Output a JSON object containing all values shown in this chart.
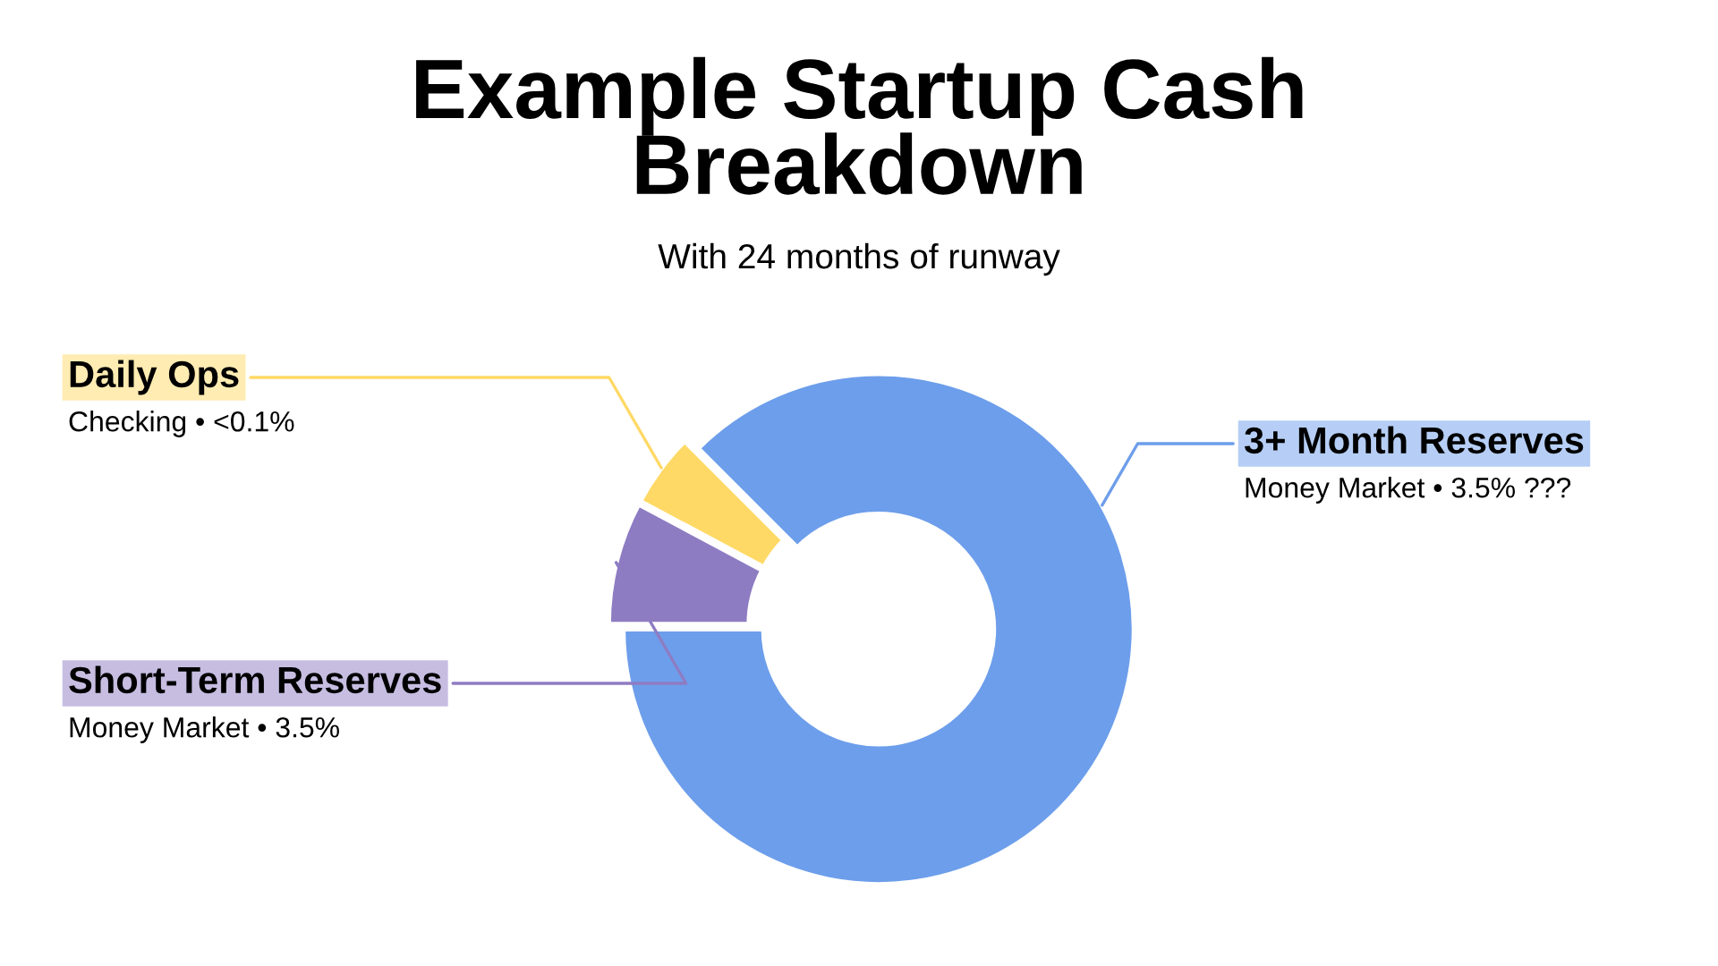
{
  "chart_data": {
    "type": "donut",
    "title": "Example Startup Cash\nBreakdown",
    "subtitle": "With 24 months of runway",
    "categories": [
      "3+ Month Reserves",
      "Short-Term Reserves",
      "Daily Ops"
    ],
    "values": [
      87.5,
      7.8,
      4.7
    ],
    "colors": [
      "#6d9eeb",
      "#8e7cc3",
      "#ffd966"
    ],
    "annotations": [
      "Money Market • 3.5% ???",
      "Money Market • 3.5%",
      "Checking • <0.1%"
    ],
    "legend": false
  }
}
